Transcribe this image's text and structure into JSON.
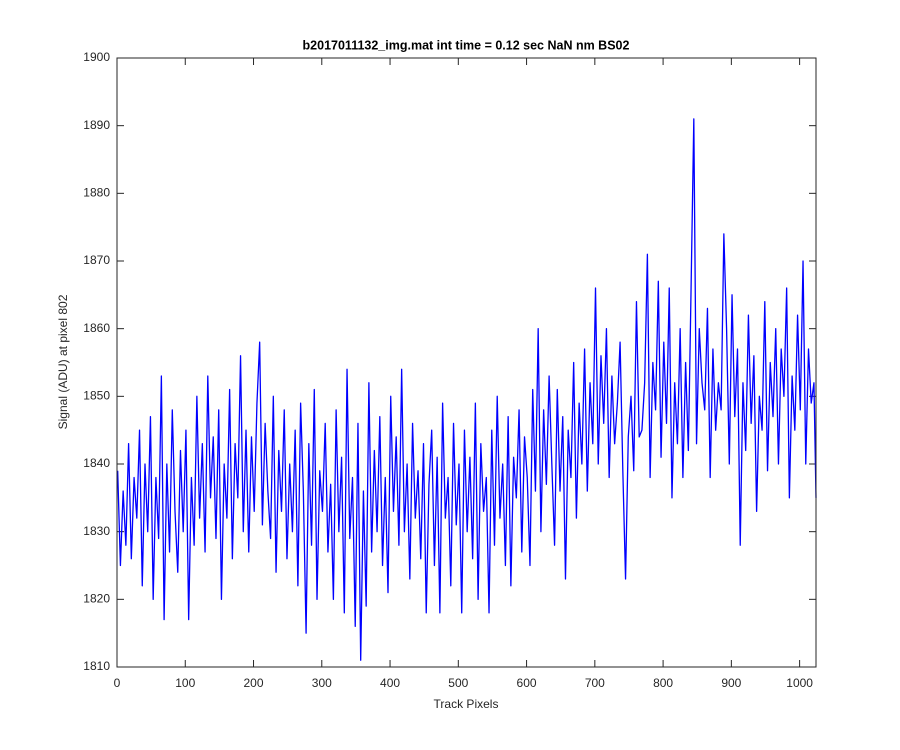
{
  "chart_data": {
    "type": "line",
    "title": "b2017011132_img.mat int time = 0.12 sec  NaN nm BS02",
    "x_label": "Track Pixels",
    "y_label": "Signal (ADU) at pixel 802",
    "color": "#0000ff",
    "xlim": [
      0,
      1024
    ],
    "xticks": [
      0,
      100,
      200,
      300,
      400,
      500,
      600,
      700,
      800,
      900,
      1000
    ],
    "ylim": [
      1810,
      1900
    ],
    "yticks": [
      1810,
      1820,
      1830,
      1840,
      1850,
      1860,
      1870,
      1880,
      1890,
      1900
    ],
    "x": [
      1,
      5,
      9,
      13,
      17,
      21,
      25,
      29,
      33,
      37,
      41,
      45,
      49,
      53,
      57,
      61,
      65,
      69,
      73,
      77,
      81,
      85,
      89,
      93,
      97,
      101,
      105,
      109,
      113,
      117,
      121,
      125,
      129,
      133,
      137,
      141,
      145,
      149,
      153,
      157,
      161,
      165,
      169,
      173,
      177,
      181,
      185,
      189,
      193,
      197,
      201,
      205,
      209,
      213,
      217,
      221,
      225,
      229,
      233,
      237,
      241,
      245,
      249,
      253,
      257,
      261,
      265,
      269,
      273,
      277,
      281,
      285,
      289,
      293,
      297,
      301,
      305,
      309,
      313,
      317,
      321,
      325,
      329,
      333,
      337,
      341,
      345,
      349,
      353,
      357,
      361,
      365,
      369,
      373,
      377,
      381,
      385,
      389,
      393,
      397,
      401,
      405,
      409,
      413,
      417,
      421,
      425,
      429,
      433,
      437,
      441,
      445,
      449,
      453,
      457,
      461,
      465,
      469,
      473,
      477,
      481,
      485,
      489,
      493,
      497,
      501,
      505,
      509,
      513,
      517,
      521,
      525,
      529,
      533,
      537,
      541,
      545,
      549,
      553,
      557,
      561,
      565,
      569,
      573,
      577,
      581,
      585,
      589,
      593,
      597,
      601,
      605,
      609,
      613,
      617,
      621,
      625,
      629,
      633,
      637,
      641,
      645,
      649,
      653,
      657,
      661,
      665,
      669,
      673,
      677,
      681,
      685,
      689,
      693,
      697,
      701,
      705,
      709,
      713,
      717,
      721,
      725,
      729,
      733,
      737,
      741,
      745,
      749,
      753,
      757,
      761,
      765,
      769,
      773,
      777,
      781,
      785,
      789,
      793,
      797,
      801,
      805,
      809,
      813,
      817,
      821,
      825,
      829,
      833,
      837,
      841,
      845,
      849,
      853,
      857,
      861,
      865,
      869,
      873,
      877,
      881,
      885,
      889,
      893,
      897,
      901,
      905,
      909,
      913,
      917,
      921,
      925,
      929,
      933,
      937,
      941,
      945,
      949,
      953,
      957,
      961,
      965,
      969,
      973,
      977,
      981,
      985,
      989,
      993,
      997,
      1001,
      1005,
      1009,
      1013,
      1017,
      1021,
      1024
    ],
    "values": [
      1839,
      1825,
      1836,
      1828,
      1843,
      1826,
      1838,
      1832,
      1845,
      1822,
      1840,
      1830,
      1847,
      1820,
      1838,
      1829,
      1853,
      1817,
      1840,
      1827,
      1848,
      1833,
      1824,
      1842,
      1830,
      1845,
      1817,
      1838,
      1828,
      1850,
      1832,
      1843,
      1827,
      1853,
      1835,
      1844,
      1829,
      1848,
      1820,
      1840,
      1832,
      1851,
      1826,
      1843,
      1835,
      1856,
      1830,
      1845,
      1827,
      1844,
      1833,
      1849,
      1858,
      1831,
      1846,
      1836,
      1829,
      1850,
      1824,
      1842,
      1833,
      1848,
      1826,
      1840,
      1830,
      1845,
      1822,
      1849,
      1836,
      1815,
      1843,
      1828,
      1851,
      1820,
      1839,
      1833,
      1846,
      1827,
      1837,
      1820,
      1848,
      1830,
      1841,
      1818,
      1854,
      1829,
      1838,
      1816,
      1846,
      1811,
      1836,
      1819,
      1852,
      1827,
      1842,
      1830,
      1847,
      1825,
      1838,
      1821,
      1850,
      1833,
      1844,
      1828,
      1854,
      1830,
      1840,
      1823,
      1846,
      1832,
      1839,
      1826,
      1843,
      1818,
      1837,
      1845,
      1825,
      1841,
      1818,
      1849,
      1832,
      1838,
      1822,
      1846,
      1831,
      1840,
      1818,
      1845,
      1830,
      1841,
      1826,
      1849,
      1820,
      1843,
      1833,
      1838,
      1818,
      1845,
      1828,
      1850,
      1832,
      1840,
      1825,
      1847,
      1822,
      1841,
      1835,
      1848,
      1827,
      1844,
      1838,
      1825,
      1851,
      1836,
      1860,
      1830,
      1848,
      1837,
      1853,
      1840,
      1828,
      1851,
      1836,
      1847,
      1823,
      1845,
      1838,
      1855,
      1832,
      1849,
      1840,
      1857,
      1836,
      1852,
      1843,
      1866,
      1840,
      1856,
      1846,
      1860,
      1838,
      1853,
      1843,
      1849,
      1858,
      1839,
      1823,
      1844,
      1850,
      1839,
      1864,
      1844,
      1845,
      1852,
      1871,
      1838,
      1855,
      1848,
      1867,
      1841,
      1858,
      1846,
      1866,
      1835,
      1852,
      1843,
      1860,
      1838,
      1855,
      1842,
      1866,
      1891,
      1843,
      1860,
      1852,
      1848,
      1863,
      1838,
      1857,
      1845,
      1852,
      1848,
      1874,
      1860,
      1840,
      1865,
      1847,
      1857,
      1828,
      1852,
      1842,
      1862,
      1846,
      1856,
      1833,
      1850,
      1845,
      1864,
      1839,
      1855,
      1847,
      1860,
      1840,
      1857,
      1850,
      1866,
      1835,
      1853,
      1845,
      1862,
      1848,
      1870,
      1840,
      1857,
      1849,
      1852,
      1835
    ]
  }
}
